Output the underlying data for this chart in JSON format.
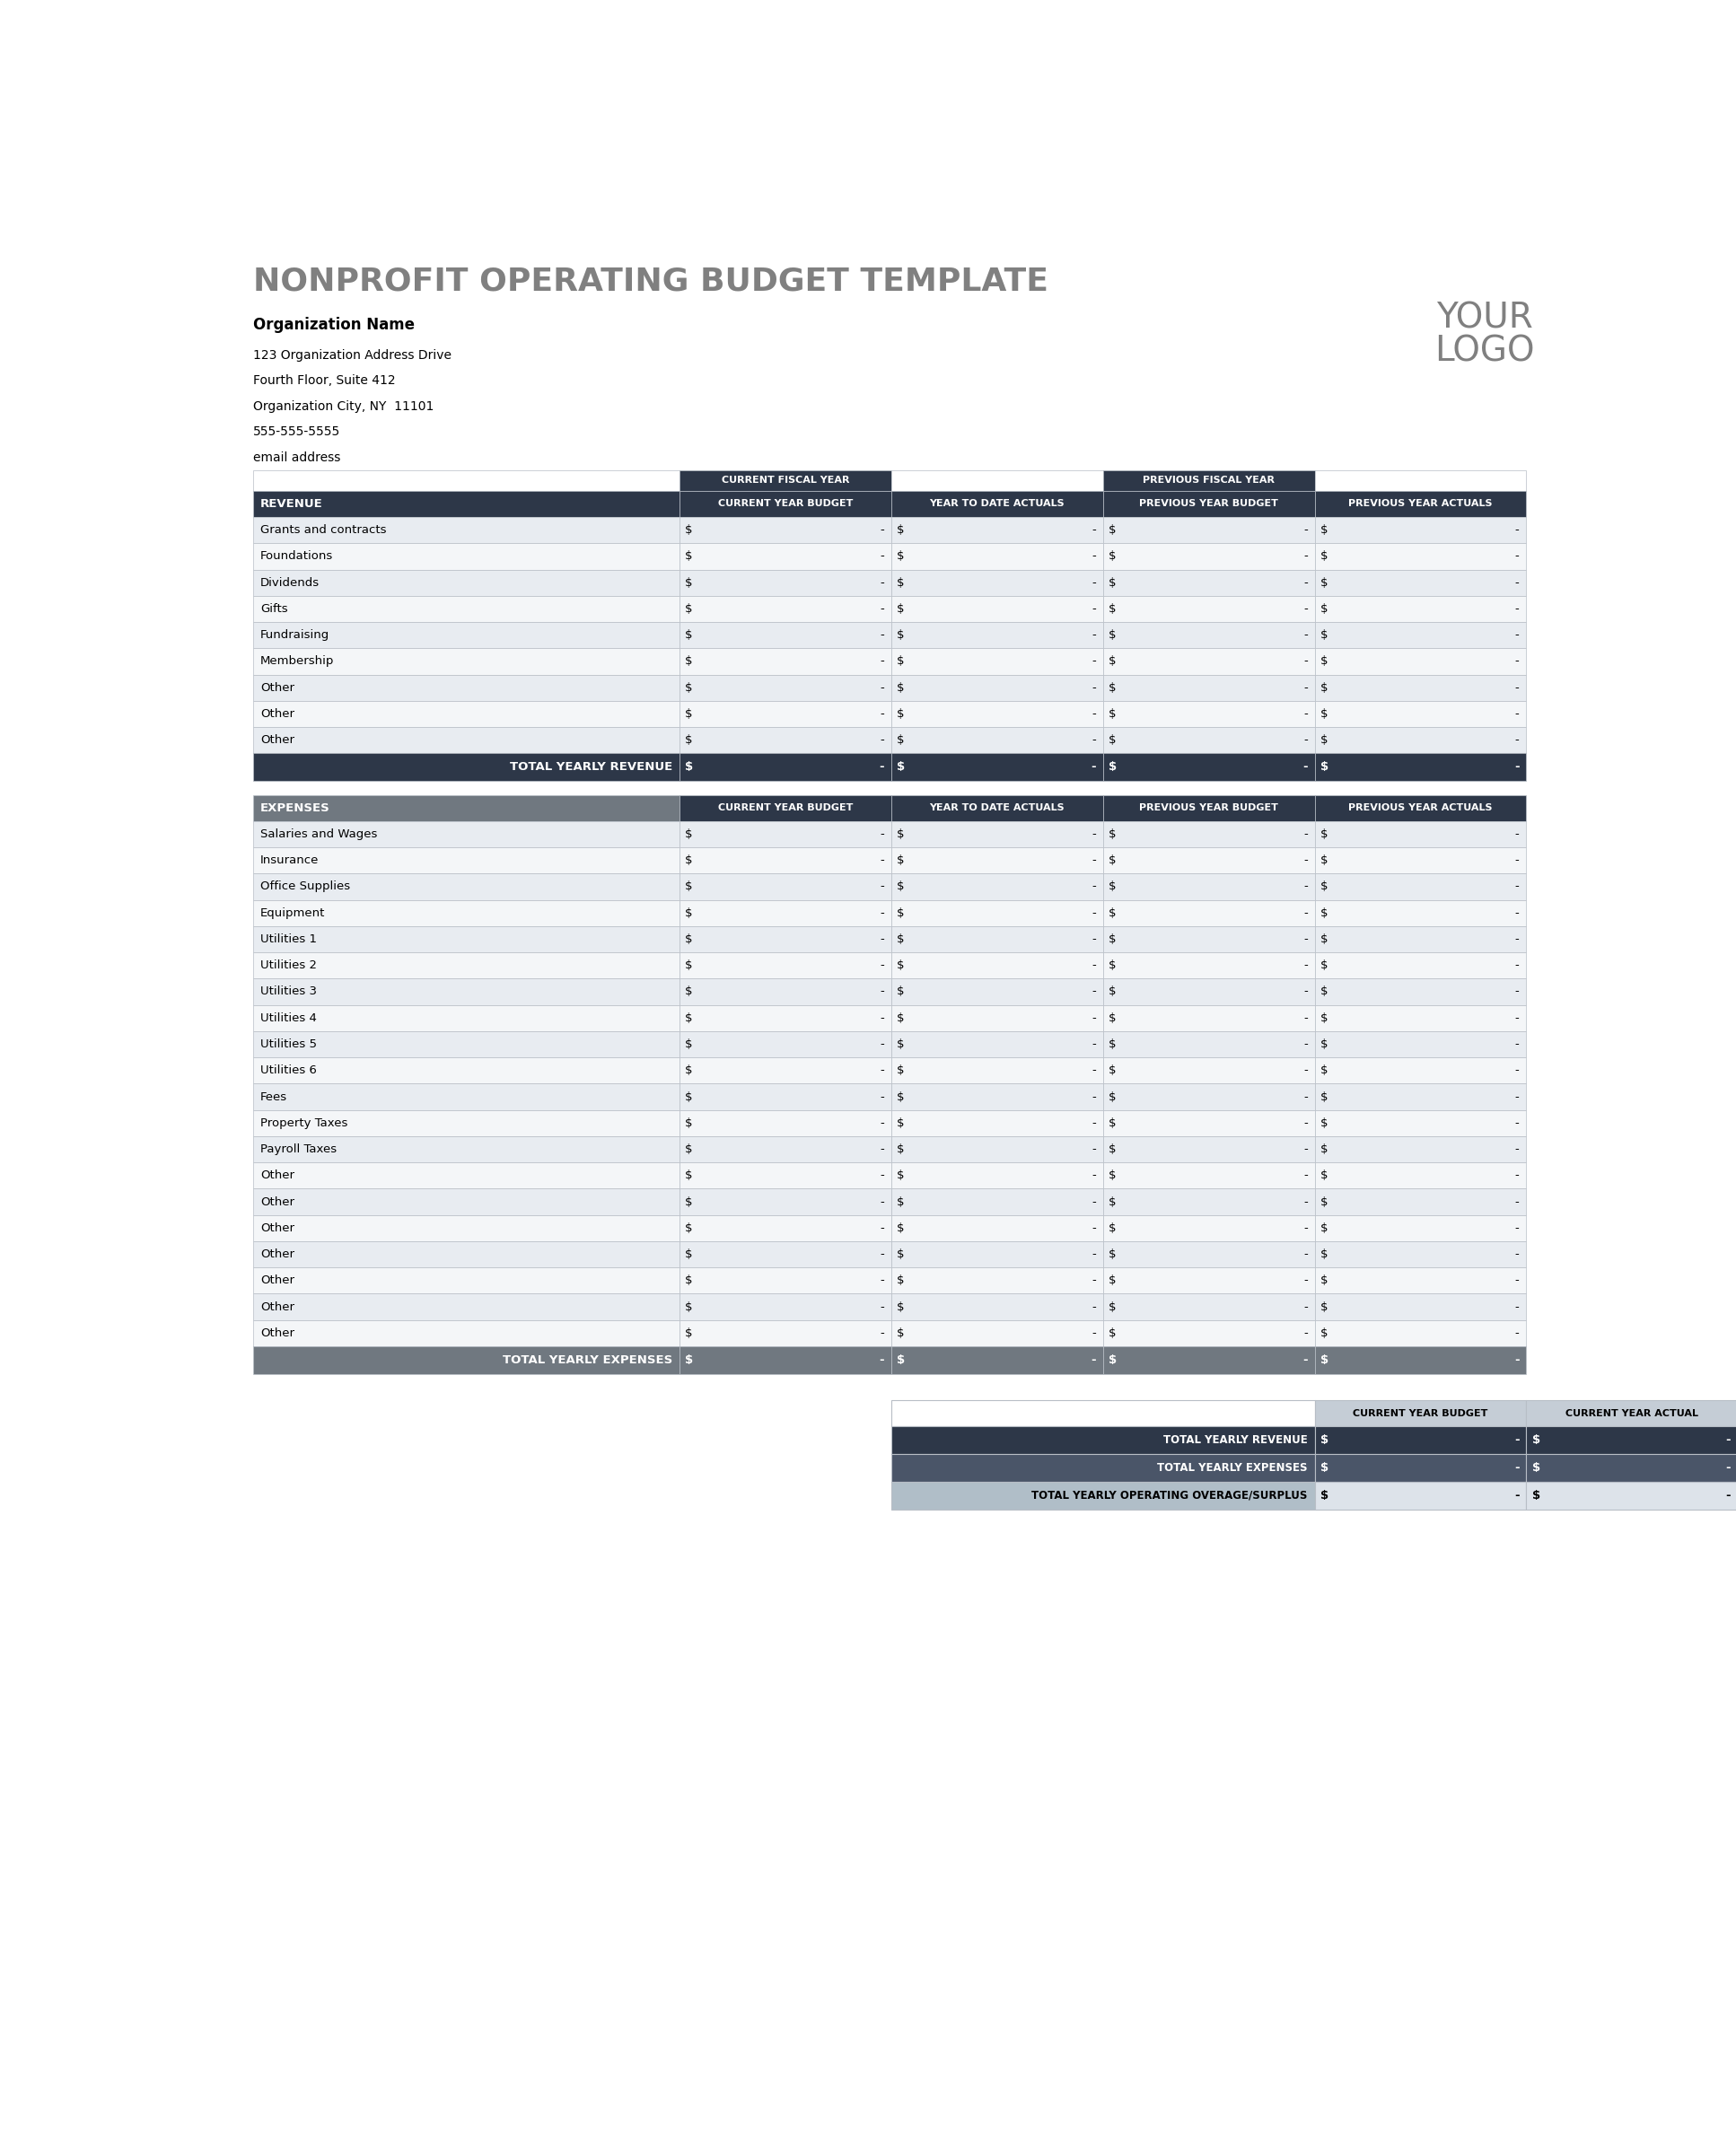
{
  "title": "NONPROFIT OPERATING BUDGET TEMPLATE",
  "org_name": "Organization Name",
  "address_lines": [
    "123 Organization Address Drive",
    "Fourth Floor, Suite 412",
    "Organization City, NY  11101",
    "555-555-5555",
    "email address"
  ],
  "header_navy": "#2d3748",
  "header_gray": "#707880",
  "row_odd": "#e8ecf1",
  "row_even": "#f4f6f8",
  "total_revenue_bg": "#2d3748",
  "total_expenses_bg": "#707880",
  "summary_row1_bg": "#2d3748",
  "summary_row2_bg": "#4a5568",
  "summary_row3_label_bg": "#b0bec8",
  "summary_row3_data_bg": "#dde3ea",
  "summary_hdr_bg": "#c5cdd6",
  "border_color": "#b8bec6",
  "title_color": "#808080",
  "white": "#ffffff",
  "black": "#000000",
  "col_headers_row2": [
    "CURRENT YEAR BUDGET",
    "YEAR TO DATE ACTUALS",
    "PREVIOUS YEAR BUDGET",
    "PREVIOUS YEAR ACTUALS"
  ],
  "revenue_label": "REVENUE",
  "revenue_rows": [
    "Grants and contracts",
    "Foundations",
    "Dividends",
    "Gifts",
    "Fundraising",
    "Membership",
    "Other",
    "Other",
    "Other"
  ],
  "revenue_total_label": "TOTAL YEARLY REVENUE",
  "expenses_label": "EXPENSES",
  "expenses_rows": [
    "Salaries and Wages",
    "Insurance",
    "Office Supplies",
    "Equipment",
    "Utilities 1",
    "Utilities 2",
    "Utilities 3",
    "Utilities 4",
    "Utilities 5",
    "Utilities 6",
    "Fees",
    "Property Taxes",
    "Payroll Taxes",
    "Other",
    "Other",
    "Other",
    "Other",
    "Other",
    "Other",
    "Other"
  ],
  "expenses_total_label": "TOTAL YEARLY EXPENSES",
  "summary_col_headers": [
    "CURRENT YEAR BUDGET",
    "CURRENT YEAR ACTUAL"
  ],
  "summary_rows": [
    "TOTAL YEARLY REVENUE",
    "TOTAL YEARLY EXPENSES",
    "TOTAL YEARLY OPERATING OVERAGE/SURPLUS"
  ]
}
